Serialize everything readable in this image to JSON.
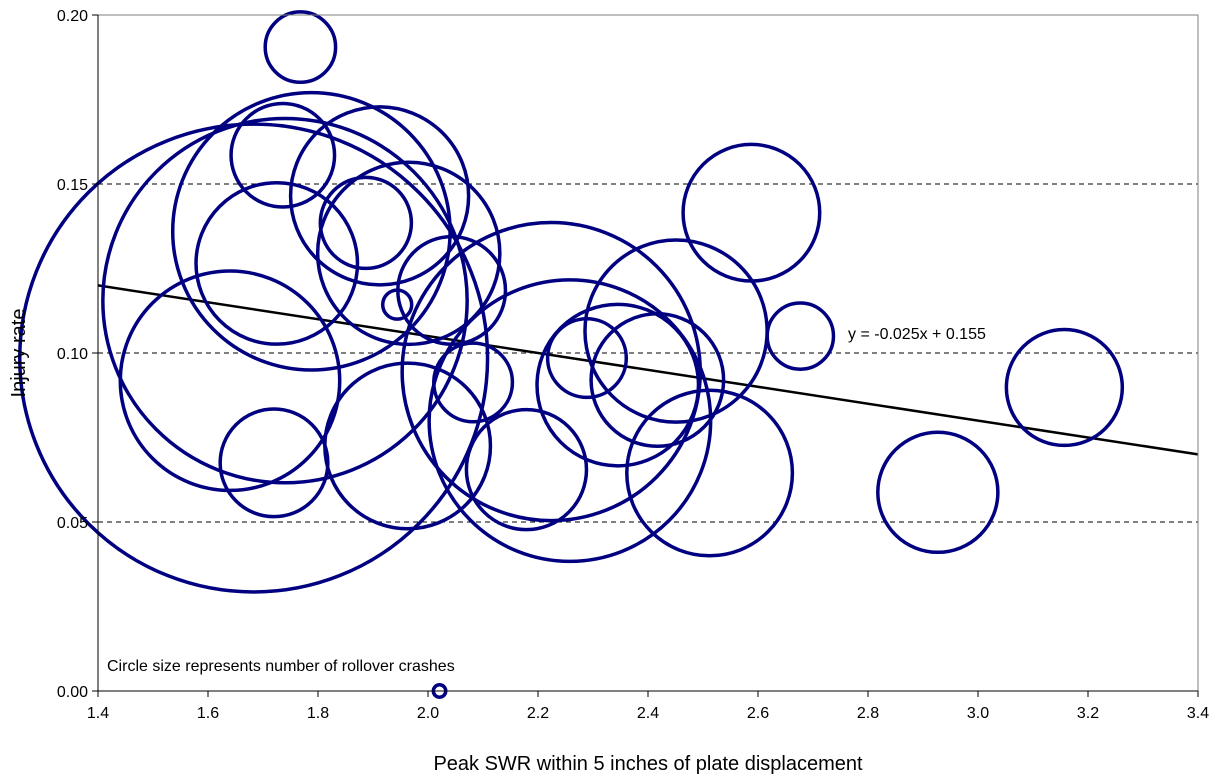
{
  "chart_data": {
    "type": "scatter",
    "title": "",
    "xlabel": "Peak SWR within 5 inches of plate displacement",
    "ylabel": "Injury rate",
    "xlim": [
      1.4,
      3.4
    ],
    "ylim": [
      0.0,
      0.2
    ],
    "x_ticks": [
      "1.4",
      "1.6",
      "1.8",
      "2.0",
      "2.2",
      "2.4",
      "2.6",
      "2.8",
      "3.0",
      "3.2",
      "3.4"
    ],
    "y_ticks": [
      "0.00",
      "0.05",
      "0.10",
      "0.15",
      "0.20"
    ],
    "grid": "horizontal-dashed",
    "legend": "none",
    "marker": "bubble-outline",
    "size_note": "Circle size represents number of rollover crashes",
    "colors": {
      "bubble": "#000080",
      "trendline": "#000000",
      "grid": "#000000"
    },
    "points": [
      {
        "x": 1.768,
        "y": 0.1905,
        "size": 1.7
      },
      {
        "x": 1.736,
        "y": 0.1585,
        "size": 2.5
      },
      {
        "x": 1.788,
        "y": 0.136,
        "size": 6.7
      },
      {
        "x": 1.912,
        "y": 0.1465,
        "size": 4.3
      },
      {
        "x": 1.887,
        "y": 0.1385,
        "size": 2.2
      },
      {
        "x": 1.965,
        "y": 0.1295,
        "size": 4.4
      },
      {
        "x": 1.725,
        "y": 0.1265,
        "size": 3.9
      },
      {
        "x": 1.74,
        "y": 0.1155,
        "size": 8.8
      },
      {
        "x": 1.944,
        "y": 0.1143,
        "size": 0.7
      },
      {
        "x": 2.043,
        "y": 0.1185,
        "size": 2.6
      },
      {
        "x": 1.683,
        "y": 0.0985,
        "size": 11.3
      },
      {
        "x": 1.64,
        "y": 0.0918,
        "size": 5.3
      },
      {
        "x": 1.72,
        "y": 0.0675,
        "size": 2.6
      },
      {
        "x": 1.963,
        "y": 0.0725,
        "size": 4.0
      },
      {
        "x": 2.082,
        "y": 0.0913,
        "size": 1.9
      },
      {
        "x": 2.224,
        "y": 0.0945,
        "size": 7.2
      },
      {
        "x": 2.258,
        "y": 0.08,
        "size": 6.8
      },
      {
        "x": 2.289,
        "y": 0.0985,
        "size": 1.9
      },
      {
        "x": 2.345,
        "y": 0.0905,
        "size": 3.9
      },
      {
        "x": 2.417,
        "y": 0.092,
        "size": 3.2
      },
      {
        "x": 2.451,
        "y": 0.1065,
        "size": 4.4
      },
      {
        "x": 2.179,
        "y": 0.0655,
        "size": 2.9
      },
      {
        "x": 2.512,
        "y": 0.0645,
        "size": 4.0
      },
      {
        "x": 2.588,
        "y": 0.1415,
        "size": 3.3
      },
      {
        "x": 2.677,
        "y": 0.105,
        "size": 1.6
      },
      {
        "x": 2.927,
        "y": 0.0588,
        "size": 2.9
      },
      {
        "x": 3.157,
        "y": 0.0898,
        "size": 2.8
      },
      {
        "x": 2.021,
        "y": 0.0,
        "size": 0.3
      }
    ],
    "trendline": {
      "label": "y = -0.025x + 0.155",
      "slope": -0.025,
      "intercept": 0.155,
      "x_range": [
        1.4,
        3.4
      ]
    }
  }
}
